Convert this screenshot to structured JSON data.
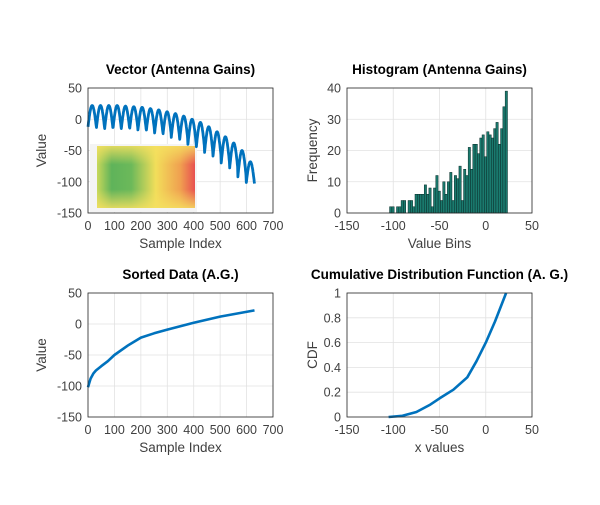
{
  "chart_data": [
    {
      "type": "line",
      "title": "Vector (Antenna Gains)",
      "xlabel": "Sample Index",
      "ylabel": "Value",
      "xlim": [
        0,
        700
      ],
      "ylim": [
        -150,
        50
      ],
      "xticks": [
        "0",
        "100",
        "200",
        "300",
        "400",
        "500",
        "600",
        "700"
      ],
      "yticks": [
        "50",
        "0",
        "-50",
        "-100",
        "-150"
      ],
      "grid": true,
      "n_samples": 630,
      "arch_peaks": [
        22,
        22,
        22,
        22,
        21,
        20,
        19,
        17,
        15,
        12,
        9,
        5,
        0,
        -5,
        -12,
        -20,
        -28,
        -38,
        -50,
        -68
      ],
      "arch_troughs": [
        -12,
        -15,
        -15,
        -15,
        -15,
        -16,
        -17,
        -19,
        -22,
        -25,
        -29,
        -34,
        -40,
        -46,
        -53,
        -61,
        -70,
        -80,
        -92,
        -103
      ],
      "color": "#0072BD",
      "inset_heatmap": {
        "colors": [
          "#4caf50",
          "#f4e04d",
          "#e84a4a"
        ]
      }
    },
    {
      "type": "bar",
      "title": "Histogram (Antenna Gains)",
      "xlabel": "Value Bins",
      "ylabel": "Frequency",
      "xlim": [
        -150,
        50
      ],
      "ylim": [
        0,
        40
      ],
      "xticks": [
        "-150",
        "-100",
        "-50",
        "0",
        "50"
      ],
      "yticks": [
        "40",
        "30",
        "20",
        "10",
        "0"
      ],
      "grid": true,
      "bin_start": -104,
      "bin_width": 2.5,
      "values": [
        2,
        2,
        0,
        2,
        2,
        4,
        4,
        0,
        4,
        4,
        2,
        6,
        6,
        6,
        6,
        9,
        6,
        8,
        2,
        8,
        12,
        7,
        4,
        10,
        6,
        10,
        13,
        4,
        12,
        11,
        15,
        4,
        14,
        12,
        21,
        14,
        22,
        22,
        19,
        24,
        25,
        18,
        26,
        25,
        24,
        27,
        29,
        22,
        27,
        34,
        39
      ],
      "color": "#1a7a6e"
    },
    {
      "type": "line",
      "title": "Sorted Data (A.G.)",
      "xlabel": "Sample Index",
      "ylabel": "Value",
      "xlim": [
        0,
        700
      ],
      "ylim": [
        -150,
        50
      ],
      "xticks": [
        "0",
        "100",
        "200",
        "300",
        "400",
        "500",
        "600",
        "700"
      ],
      "yticks": [
        "50",
        "0",
        "-50",
        "-100",
        "-150"
      ],
      "grid": true,
      "x": [
        0,
        5,
        10,
        20,
        30,
        50,
        75,
        100,
        150,
        200,
        250,
        300,
        400,
        500,
        630
      ],
      "y": [
        -102,
        -95,
        -88,
        -80,
        -75,
        -68,
        -60,
        -50,
        -35,
        -22,
        -15,
        -9,
        2,
        12,
        22
      ],
      "color": "#0072BD"
    },
    {
      "type": "line",
      "title": "Cumulative Distribution Function (A. G.)",
      "xlabel": "x values",
      "ylabel": "CDF",
      "xlim": [
        -150,
        50
      ],
      "ylim": [
        0,
        1
      ],
      "xticks": [
        "-150",
        "-100",
        "-50",
        "0",
        "50"
      ],
      "yticks": [
        "1",
        "0.8",
        "0.6",
        "0.4",
        "0.2",
        "0"
      ],
      "grid": true,
      "x": [
        -105,
        -90,
        -75,
        -60,
        -50,
        -35,
        -20,
        -10,
        0,
        10,
        22
      ],
      "y": [
        0,
        0.01,
        0.04,
        0.1,
        0.15,
        0.22,
        0.32,
        0.45,
        0.6,
        0.77,
        1
      ],
      "color": "#0072BD"
    }
  ]
}
